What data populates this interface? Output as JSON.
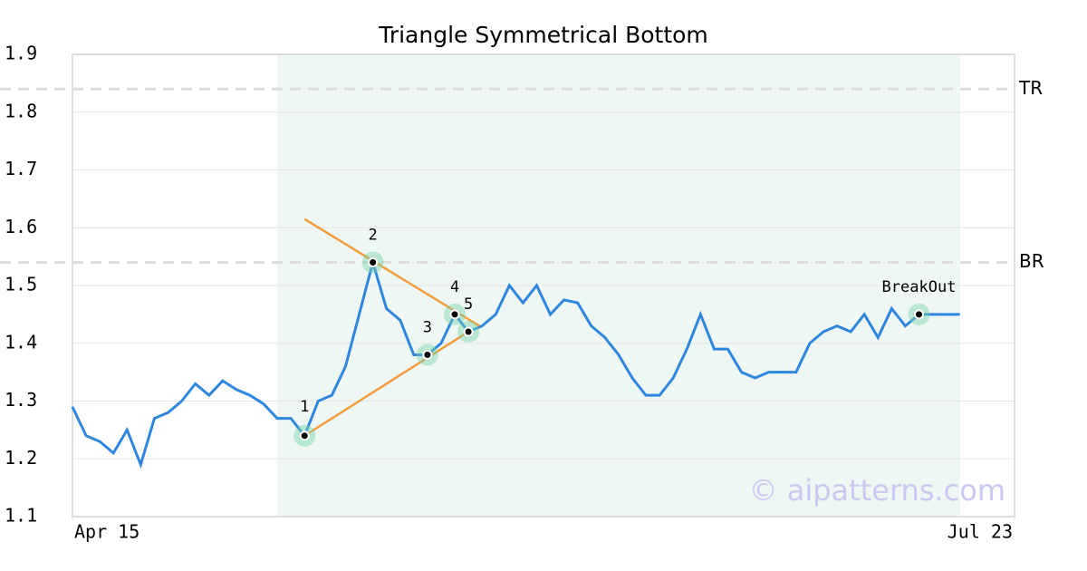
{
  "chart_data": {
    "type": "line",
    "title": "Triangle Symmetrical Bottom",
    "x": [
      0,
      1,
      2,
      3,
      4,
      5,
      6,
      7,
      8,
      9,
      10,
      11,
      12,
      13,
      14,
      15,
      16,
      17,
      18,
      19,
      20,
      21,
      22,
      23,
      24,
      25,
      26,
      27,
      28,
      29,
      30,
      31,
      32,
      33,
      34,
      35,
      36,
      37,
      38,
      39,
      40,
      41,
      42,
      43,
      44,
      45,
      46,
      47,
      48,
      49,
      50,
      51,
      52,
      53,
      54,
      55,
      56,
      57,
      58,
      59,
      60,
      61,
      62,
      63,
      64,
      65
    ],
    "values": [
      1.29,
      1.24,
      1.23,
      1.21,
      1.25,
      1.19,
      1.27,
      1.28,
      1.3,
      1.33,
      1.31,
      1.335,
      1.32,
      1.31,
      1.295,
      1.27,
      1.27,
      1.24,
      1.3,
      1.31,
      1.36,
      1.45,
      1.54,
      1.46,
      1.44,
      1.38,
      1.38,
      1.4,
      1.45,
      1.42,
      1.43,
      1.45,
      1.5,
      1.47,
      1.5,
      1.45,
      1.475,
      1.47,
      1.43,
      1.41,
      1.38,
      1.34,
      1.31,
      1.31,
      1.34,
      1.39,
      1.45,
      1.39,
      1.39,
      1.35,
      1.34,
      1.35,
      1.35,
      1.35,
      1.4,
      1.42,
      1.43,
      1.42,
      1.45,
      1.41,
      1.46,
      1.43,
      1.45,
      1.45,
      1.45,
      1.45
    ],
    "color": "#2e86de",
    "xlim": [
      0,
      69
    ],
    "xticks": [
      {
        "value": 0,
        "label": "Apr 15"
      },
      {
        "value": 69,
        "label": "Jul 23"
      }
    ],
    "ylim": [
      1.1,
      1.9
    ],
    "yticks": [
      1.1,
      1.2,
      1.3,
      1.4,
      1.5,
      1.6,
      1.7,
      1.8,
      1.9
    ],
    "grid": true,
    "shaded_range": [
      15,
      65
    ],
    "shade_color": "#eef7f3",
    "levels": [
      {
        "label": "TR",
        "value": 1.84
      },
      {
        "label": "BR",
        "value": 1.54
      }
    ],
    "trend_lines": [
      {
        "x": [
          17,
          29.8
        ],
        "y": [
          1.615,
          1.43
        ]
      },
      {
        "x": [
          17,
          29
        ],
        "y": [
          1.24,
          1.42
        ]
      }
    ],
    "trend_color": "#f39c3d",
    "pivots": [
      {
        "label": "1",
        "x": 17,
        "y": 1.24
      },
      {
        "label": "2",
        "x": 22,
        "y": 1.54
      },
      {
        "label": "3",
        "x": 26,
        "y": 1.38
      },
      {
        "label": "4",
        "x": 28,
        "y": 1.45
      },
      {
        "label": "5",
        "x": 29,
        "y": 1.42
      },
      {
        "label": "BreakOut",
        "x": 62,
        "y": 1.45
      }
    ],
    "watermark": "© aipatterns.com"
  }
}
